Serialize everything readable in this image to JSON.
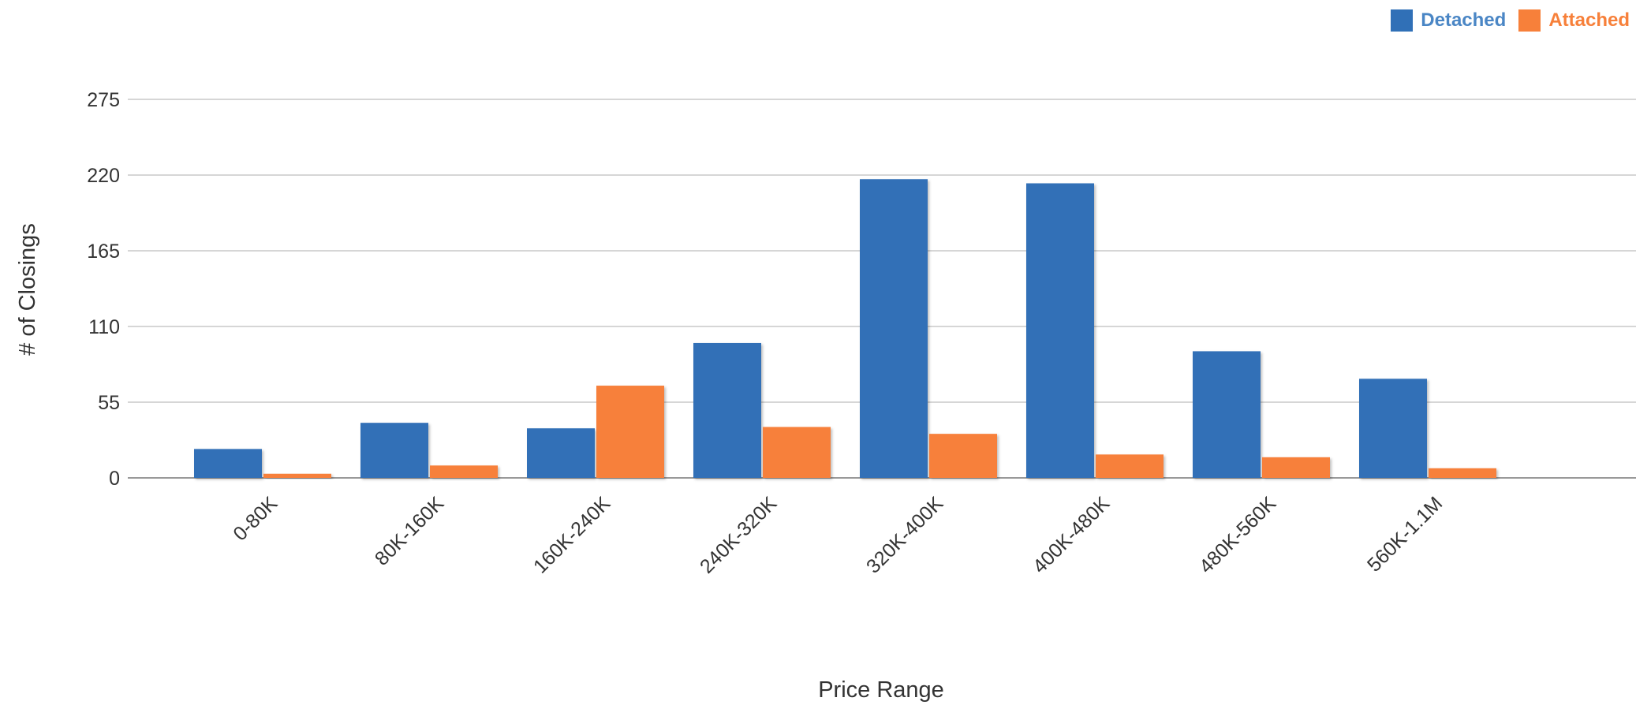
{
  "chart_data": {
    "type": "bar",
    "xlabel": "Price Range",
    "ylabel": "# of Closings",
    "ylim": [
      0,
      275
    ],
    "yticks": [
      "0",
      "55",
      "110",
      "165",
      "220",
      "275"
    ],
    "categories": [
      "0-80K",
      "80K-160K",
      "160K-240K",
      "240K-320K",
      "320K-400K",
      "400K-480K",
      "480K-560K",
      "560K-1.1M"
    ],
    "series": [
      {
        "name": "Detached",
        "color": "#3070b7",
        "values": [
          21,
          40,
          36,
          98,
          217,
          214,
          92,
          72
        ]
      },
      {
        "name": "Attached",
        "color": "#f7803a",
        "values": [
          3,
          9,
          67,
          37,
          32,
          17,
          15,
          7
        ]
      }
    ],
    "grid": true,
    "legend": "top-right"
  }
}
